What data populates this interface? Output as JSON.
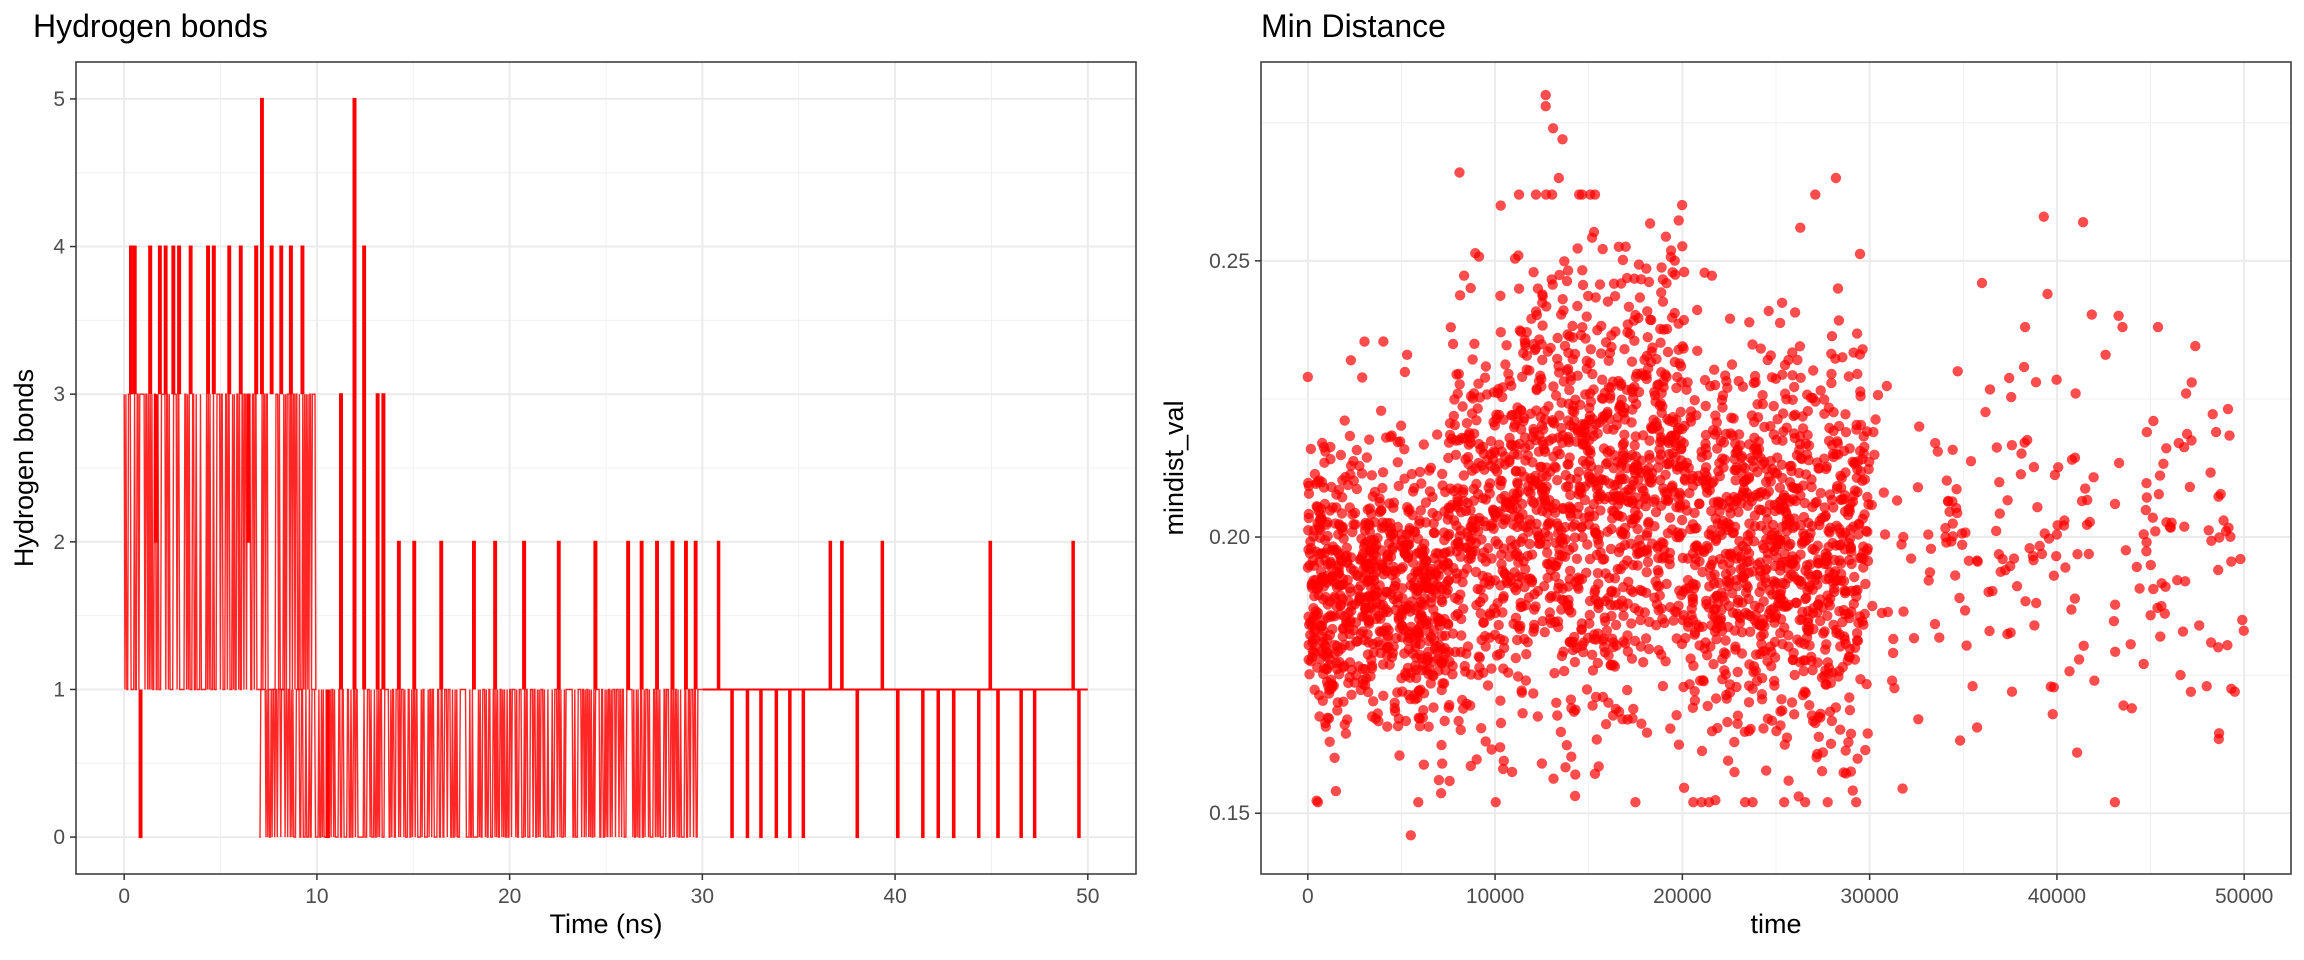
{
  "chart_data": [
    {
      "type": "line",
      "title": "Hydrogen bonds",
      "xlabel": "Time (ns)",
      "ylabel": "Hydrogen bonds",
      "xlim": [
        -2.5,
        52.5
      ],
      "ylim": [
        -0.25,
        5.25
      ],
      "xticks": [
        0,
        10,
        20,
        30,
        40,
        50
      ],
      "yticks": [
        0,
        1,
        2,
        3,
        4,
        5
      ],
      "grid": true,
      "color": "#FF0000",
      "segments": [
        {
          "x": [
            0,
            10
          ],
          "low": 1,
          "high": 3
        },
        {
          "x": [
            7,
            30
          ],
          "low": 0,
          "high": 1
        }
      ],
      "spikes": [
        {
          "x": 0.3,
          "y": 4
        },
        {
          "x": 0.5,
          "y": 4
        },
        {
          "x": 0.8,
          "y": 0
        },
        {
          "x": 1.3,
          "y": 4
        },
        {
          "x": 1.6,
          "y": 2
        },
        {
          "x": 1.8,
          "y": 4
        },
        {
          "x": 2.1,
          "y": 4
        },
        {
          "x": 2.5,
          "y": 4
        },
        {
          "x": 2.8,
          "y": 4
        },
        {
          "x": 3.4,
          "y": 4
        },
        {
          "x": 4.3,
          "y": 4
        },
        {
          "x": 4.6,
          "y": 4
        },
        {
          "x": 5.4,
          "y": 4
        },
        {
          "x": 6.0,
          "y": 4
        },
        {
          "x": 6.4,
          "y": 2
        },
        {
          "x": 6.8,
          "y": 4
        },
        {
          "x": 7.1,
          "y": 5
        },
        {
          "x": 7.6,
          "y": 4
        },
        {
          "x": 8.1,
          "y": 4
        },
        {
          "x": 8.6,
          "y": 4
        },
        {
          "x": 9.2,
          "y": 4
        },
        {
          "x": 10.5,
          "y": 0
        },
        {
          "x": 11.2,
          "y": 3
        },
        {
          "x": 11.9,
          "y": 5
        },
        {
          "x": 12.4,
          "y": 4
        },
        {
          "x": 13.1,
          "y": 3
        },
        {
          "x": 13.4,
          "y": 3
        },
        {
          "x": 14.2,
          "y": 2
        },
        {
          "x": 15.0,
          "y": 2
        },
        {
          "x": 16.4,
          "y": 2
        },
        {
          "x": 18.1,
          "y": 2
        },
        {
          "x": 19.2,
          "y": 2
        },
        {
          "x": 20.7,
          "y": 2
        },
        {
          "x": 22.5,
          "y": 2
        },
        {
          "x": 24.4,
          "y": 2
        },
        {
          "x": 26.1,
          "y": 2
        },
        {
          "x": 26.8,
          "y": 2
        },
        {
          "x": 27.6,
          "y": 2
        },
        {
          "x": 28.4,
          "y": 2
        },
        {
          "x": 29.1,
          "y": 2
        },
        {
          "x": 29.6,
          "y": 2
        },
        {
          "x": 30.8,
          "y": 2
        },
        {
          "x": 31.5,
          "y": 0
        },
        {
          "x": 32.3,
          "y": 0
        },
        {
          "x": 33.0,
          "y": 0
        },
        {
          "x": 33.8,
          "y": 0
        },
        {
          "x": 34.5,
          "y": 0
        },
        {
          "x": 35.2,
          "y": 0
        },
        {
          "x": 36.6,
          "y": 2
        },
        {
          "x": 37.2,
          "y": 2
        },
        {
          "x": 38.0,
          "y": 0
        },
        {
          "x": 39.3,
          "y": 2
        },
        {
          "x": 40.1,
          "y": 0
        },
        {
          "x": 41.4,
          "y": 0
        },
        {
          "x": 42.2,
          "y": 0
        },
        {
          "x": 43.0,
          "y": 0
        },
        {
          "x": 44.3,
          "y": 0
        },
        {
          "x": 44.9,
          "y": 2
        },
        {
          "x": 45.3,
          "y": 0
        },
        {
          "x": 46.5,
          "y": 0
        },
        {
          "x": 47.2,
          "y": 0
        },
        {
          "x": 49.2,
          "y": 2
        },
        {
          "x": 49.5,
          "y": 0
        }
      ],
      "tail_value": 1,
      "x_end": 50
    },
    {
      "type": "scatter",
      "title": "Min Distance",
      "xlabel": "time",
      "ylabel": "mindist_val",
      "xlim": [
        -2500,
        52500
      ],
      "ylim": [
        0.139,
        0.286
      ],
      "xticks": [
        0,
        10000,
        20000,
        30000,
        40000,
        50000
      ],
      "yticks": [
        0.15,
        0.2,
        0.25
      ],
      "grid": true,
      "color": "#FF0000",
      "opacity": 0.7,
      "regions": [
        {
          "x": [
            0,
            7500
          ],
          "y_center": 0.19,
          "y_sd": 0.013,
          "n": 750
        },
        {
          "x": [
            7500,
            11000
          ],
          "y_center": 0.2,
          "y_sd": 0.019,
          "n": 300
        },
        {
          "x": [
            11000,
            20000
          ],
          "y_center": 0.21,
          "y_sd": 0.021,
          "n": 950
        },
        {
          "x": [
            20000,
            30000
          ],
          "y_center": 0.198,
          "y_sd": 0.019,
          "n": 950
        },
        {
          "x": [
            30000,
            50000
          ],
          "y_center": 0.197,
          "y_sd": 0.017,
          "n": 190
        }
      ],
      "points": [
        {
          "x": 0,
          "y": 0.229
        },
        {
          "x": 5500,
          "y": 0.146
        },
        {
          "x": 12700,
          "y": 0.28
        },
        {
          "x": 12700,
          "y": 0.278
        },
        {
          "x": 13100,
          "y": 0.274
        },
        {
          "x": 13600,
          "y": 0.272
        },
        {
          "x": 13400,
          "y": 0.265
        },
        {
          "x": 10300,
          "y": 0.26
        },
        {
          "x": 8100,
          "y": 0.266
        },
        {
          "x": 20100,
          "y": 0.248
        },
        {
          "x": 39300,
          "y": 0.258
        },
        {
          "x": 41400,
          "y": 0.257
        },
        {
          "x": 28200,
          "y": 0.265
        },
        {
          "x": 27100,
          "y": 0.262
        },
        {
          "x": 26300,
          "y": 0.256
        },
        {
          "x": 49800,
          "y": 0.196
        },
        {
          "x": 49900,
          "y": 0.185
        },
        {
          "x": 49500,
          "y": 0.172
        },
        {
          "x": 45400,
          "y": 0.238
        },
        {
          "x": 43500,
          "y": 0.238
        },
        {
          "x": 36000,
          "y": 0.246
        },
        {
          "x": 39500,
          "y": 0.244
        },
        {
          "x": 38300,
          "y": 0.238
        },
        {
          "x": 31200,
          "y": 0.174
        },
        {
          "x": 32600,
          "y": 0.167
        },
        {
          "x": 35500,
          "y": 0.173
        },
        {
          "x": 37600,
          "y": 0.172
        },
        {
          "x": 42000,
          "y": 0.174
        },
        {
          "x": 44000,
          "y": 0.169
        },
        {
          "x": 46600,
          "y": 0.175
        },
        {
          "x": 48000,
          "y": 0.173
        },
        {
          "x": 47200,
          "y": 0.228
        },
        {
          "x": 46900,
          "y": 0.226
        },
        {
          "x": 48500,
          "y": 0.219
        },
        {
          "x": 34700,
          "y": 0.23
        },
        {
          "x": 33500,
          "y": 0.217
        },
        {
          "x": 30200,
          "y": 0.219
        },
        {
          "x": 41000,
          "y": 0.226
        },
        {
          "x": 42600,
          "y": 0.233
        },
        {
          "x": 44800,
          "y": 0.219
        },
        {
          "x": 36400,
          "y": 0.183
        },
        {
          "x": 37100,
          "y": 0.196
        },
        {
          "x": 40400,
          "y": 0.203
        },
        {
          "x": 43100,
          "y": 0.206
        },
        {
          "x": 45800,
          "y": 0.191
        },
        {
          "x": 47600,
          "y": 0.184
        },
        {
          "x": 48900,
          "y": 0.203
        },
        {
          "x": 31800,
          "y": 0.2
        },
        {
          "x": 38800,
          "y": 0.184
        },
        {
          "x": 34100,
          "y": 0.199
        },
        {
          "x": 2300,
          "y": 0.232
        },
        {
          "x": 5300,
          "y": 0.233
        },
        {
          "x": 7000,
          "y": 0.156
        },
        {
          "x": 9500,
          "y": 0.163
        },
        {
          "x": 1500,
          "y": 0.154
        },
        {
          "x": 12500,
          "y": 0.159
        }
      ]
    }
  ]
}
